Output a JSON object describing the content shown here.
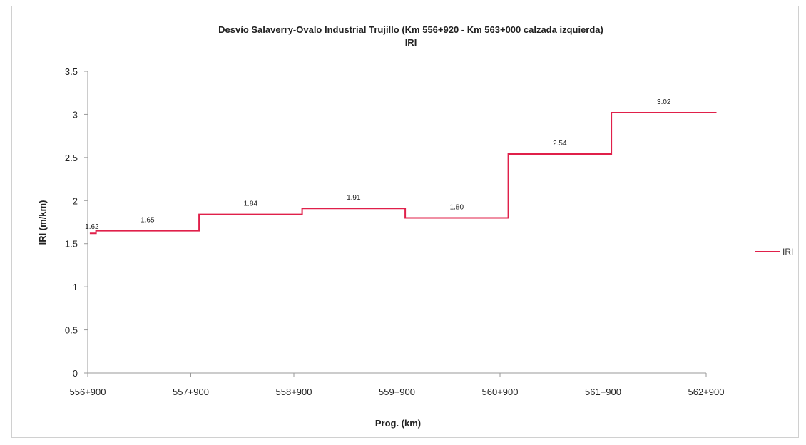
{
  "chart_data": {
    "type": "line",
    "title": "Desvío Salaverry-Ovalo  Industrial Trujillo  (Km 556+920 - Km 563+000 calzada  izquierda)",
    "subtitle": "IRI",
    "xlabel": "Prog. (km)",
    "ylabel": "IRI (m/km)",
    "ylim": [
      0,
      3.5
    ],
    "yticks": [
      "0",
      "0.5",
      "1",
      "1.5",
      "2",
      "2.5",
      "3",
      "3.5"
    ],
    "xticks": [
      "556+900",
      "557+900",
      "558+900",
      "559+900",
      "560+900",
      "561+900",
      "562+900"
    ],
    "grid": false,
    "legend_position": "right",
    "series": [
      {
        "name": "IRI",
        "color": "#e0204a",
        "segments": [
          {
            "from": 556.92,
            "to": 556.98,
            "value": 1.62,
            "label": "1.62"
          },
          {
            "from": 556.98,
            "to": 557.98,
            "value": 1.65,
            "label": "1.65"
          },
          {
            "from": 557.98,
            "to": 558.98,
            "value": 1.84,
            "label": "1.84"
          },
          {
            "from": 558.98,
            "to": 559.98,
            "value": 1.91,
            "label": "1.91"
          },
          {
            "from": 559.98,
            "to": 560.98,
            "value": 1.8,
            "label": "1.80"
          },
          {
            "from": 560.98,
            "to": 561.98,
            "value": 2.54,
            "label": "2.54"
          },
          {
            "from": 561.98,
            "to": 563.0,
            "value": 3.02,
            "label": "3.02"
          }
        ]
      }
    ]
  }
}
